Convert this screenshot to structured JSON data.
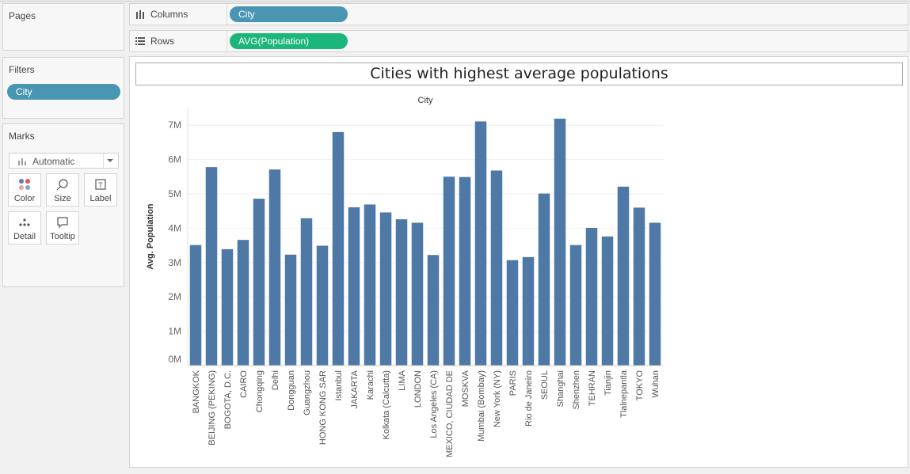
{
  "left_panel": {
    "pages_title": "Pages",
    "filters_title": "Filters",
    "filter_pill": "City",
    "marks_title": "Marks",
    "mark_type": "Automatic",
    "buttons": {
      "color": "Color",
      "size": "Size",
      "label": "Label",
      "detail": "Detail",
      "tooltip": "Tooltip"
    }
  },
  "shelves": {
    "columns_label": "Columns",
    "columns_pill": "City",
    "rows_label": "Rows",
    "rows_pill": "AVG(Population)"
  },
  "colors": {
    "bar": "#4e79a7",
    "dimension_pill": "#4996b2",
    "measure_pill": "#1bb67a"
  },
  "chart_data": {
    "type": "bar",
    "title": "Cities with highest average populations",
    "xlabel": "City",
    "ylabel": "Avg. Population",
    "ylim": [
      0,
      7500000
    ],
    "yticks": [
      0,
      1000000,
      2000000,
      3000000,
      4000000,
      5000000,
      6000000,
      7000000
    ],
    "ytick_labels": [
      "0M",
      "1M",
      "2M",
      "3M",
      "4M",
      "5M",
      "6M",
      "7M"
    ],
    "grid": true,
    "categories": [
      "BANGKOK",
      "BEIJING (PEKING)",
      "BOGOTA, D.C.",
      "CAIRO",
      "Chongqing",
      "Delhi",
      "Dongguan",
      "Guangzhou",
      "HONG KONG SAR",
      "Istanbul",
      "JAKARTA",
      "Karachi",
      "Kolkata (Calcutta)",
      "LIMA",
      "LONDON",
      "Los Angeles (CA)",
      "MEXICO, CIUDAD DE",
      "MOSKVA",
      "Mumbai (Bombay)",
      "New York (NY)",
      "PARIS",
      "Rio de Janeiro",
      "SEOUL",
      "Shanghai",
      "Shenzhen",
      "TEHRAN",
      "Tianjin",
      "Tlalnepantla",
      "TOKYO",
      "Wuhan"
    ],
    "values": [
      3510000,
      5780000,
      3390000,
      3660000,
      4860000,
      5710000,
      3230000,
      4290000,
      3490000,
      6800000,
      4610000,
      4690000,
      4460000,
      4260000,
      4160000,
      3220000,
      5500000,
      5490000,
      7110000,
      5680000,
      3070000,
      3160000,
      5010000,
      7190000,
      3510000,
      4010000,
      3760000,
      5210000,
      4600000,
      4160000
    ]
  }
}
